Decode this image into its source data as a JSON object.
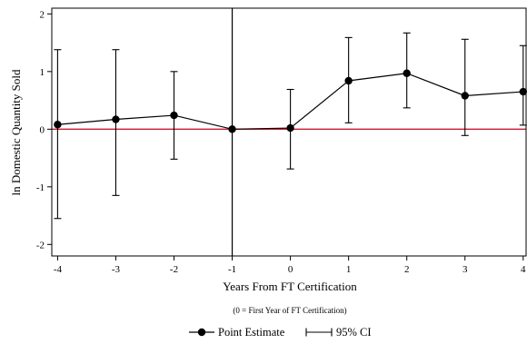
{
  "chart_data": {
    "type": "line",
    "title": "",
    "xlabel": "Years From FT Certification",
    "xlabel_note": "(0 = First Year of FT Certification)",
    "ylabel": "ln Domestic Quantity Sold",
    "x": [
      -4,
      -3,
      -2,
      -1,
      0,
      1,
      2,
      3,
      4
    ],
    "x_tick_labels": [
      "-4",
      "-3",
      "-2",
      "-1",
      "0",
      "1",
      "2",
      "3",
      "4"
    ],
    "y_ticks": [
      -2,
      -1,
      0,
      1,
      2
    ],
    "y_tick_labels": [
      "-2",
      "-1",
      "0",
      "1",
      "2"
    ],
    "xlim": [
      -4.1,
      4.05
    ],
    "ylim": [
      -2.2,
      2.1
    ],
    "series": [
      {
        "name": "Point Estimate",
        "values": [
          0.08,
          0.17,
          0.24,
          0.0,
          0.02,
          0.84,
          0.97,
          0.58,
          0.65
        ],
        "ci_lower": [
          -1.55,
          -1.15,
          -0.52,
          0.0,
          -0.69,
          0.11,
          0.37,
          -0.11,
          0.07
        ],
        "ci_upper": [
          1.38,
          1.38,
          1.0,
          0.0,
          0.69,
          1.59,
          1.67,
          1.56,
          1.45
        ]
      }
    ],
    "reference_lines": [
      {
        "axis": "y",
        "value": 0,
        "color": "#cc1a35"
      },
      {
        "axis": "x",
        "value": -1,
        "color": "#000000"
      }
    ],
    "legend": {
      "placement": "bottom-center",
      "entries": [
        "Point Estimate",
        "95% CI"
      ]
    },
    "grid": false
  }
}
